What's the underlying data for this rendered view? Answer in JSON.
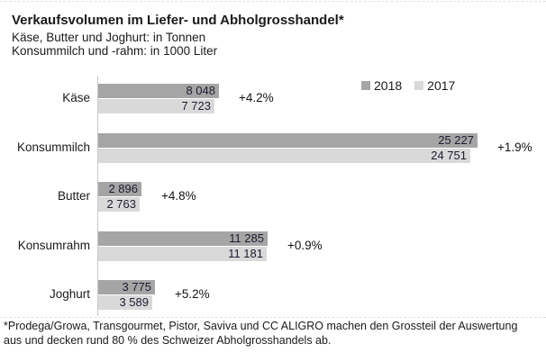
{
  "header": {
    "title": "Verkaufsvolumen im Liefer- und Abholgrosshandel*",
    "subtitle1": "Käse, Butter und Joghurt: in Tonnen",
    "subtitle2": "Konsummilch und -rahm: in 1000 Liter"
  },
  "chart_data": {
    "type": "bar",
    "orientation": "horizontal",
    "title": "Verkaufsvolumen im Liefer- und Abholgrosshandel*",
    "categories": [
      "Käse",
      "Konsummilch",
      "Butter",
      "Konsumrahm",
      "Joghurt"
    ],
    "series": [
      {
        "name": "2018",
        "color": "#a5a5a5",
        "values": [
          8048,
          25227,
          2896,
          11285,
          3775
        ],
        "labels": [
          "8 048",
          "25 227",
          "2 896",
          "11 285",
          "3 775"
        ]
      },
      {
        "name": "2017",
        "color": "#d9d9d9",
        "values": [
          7723,
          24751,
          2763,
          11181,
          3589
        ],
        "labels": [
          "7 723",
          "24 751",
          "2 763",
          "11 181",
          "3 589"
        ]
      }
    ],
    "change_labels": [
      "+4.2%",
      "+1.9%",
      "+4.8%",
      "+0.9%",
      "+5.2%"
    ],
    "value_axis_max": 25227,
    "units_note": "Käse/Butter/Joghurt in Tonnen; Konsummilch/-rahm in 1000 Liter",
    "grid": false,
    "legend_position": "top-right",
    "data_labels_position": "inside-end"
  },
  "footnote": {
    "line1": "*Prodega/Growa, Transgourmet, Pistor, Saviva und CC ALIGRO machen den Grossteil der Auswertung",
    "line2": "aus und decken rund 80 % des Schweizer Abholgrosshandels ab."
  },
  "colors": {
    "series_2018": "#a5a5a5",
    "series_2017": "#d9d9d9",
    "axis_line": "#c9c9c9",
    "value_text": "#1c1c30",
    "background": "#ffffff"
  }
}
